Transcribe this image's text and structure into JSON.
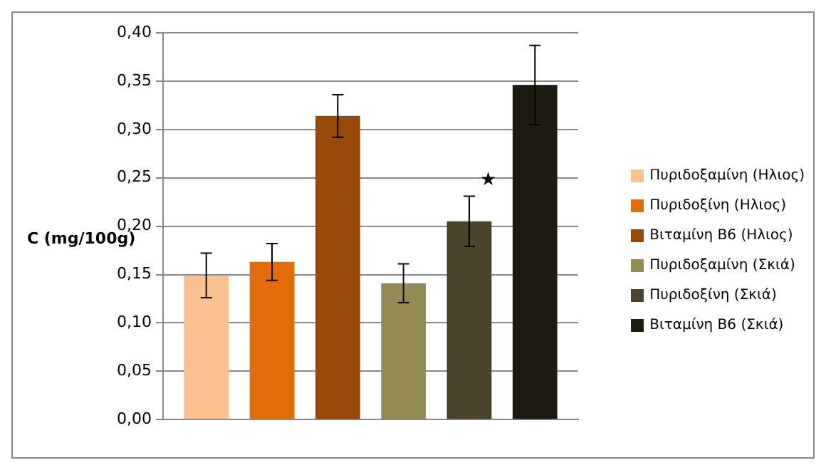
{
  "chart_data": {
    "type": "bar",
    "ylabel": "C (mg/100g)",
    "categories": [
      null
    ],
    "series": [
      {
        "name": "Πυριδοξαμίνη (Ηλιος)",
        "color": "#fac090",
        "values": [
          0.149
        ],
        "errors": [
          0.023
        ]
      },
      {
        "name": "Πυριδοξίνη (Ηλιος)",
        "color": "#e36c0a",
        "values": [
          0.163
        ],
        "errors": [
          0.019
        ]
      },
      {
        "name": "Βιταμίνη Β6 (Ηλιος)",
        "color": "#984807",
        "values": [
          0.314
        ],
        "errors": [
          0.022
        ]
      },
      {
        "name": "Πυριδοξαμίνη (Σκιά)",
        "color": "#948a54",
        "values": [
          0.141
        ],
        "errors": [
          0.02
        ]
      },
      {
        "name": "Πυριδοξίνη (Σκιά)",
        "color": "#4a452a",
        "values": [
          0.205
        ],
        "errors": [
          0.026
        ]
      },
      {
        "name": "Βιταμίνη Β6 (Σκιά)",
        "color": "#1d1b10",
        "values": [
          0.346
        ],
        "errors": [
          0.041
        ]
      }
    ],
    "annotations": [
      "★"
    ],
    "ylim": [
      0,
      0.4
    ],
    "yticks": [
      {
        "value": 0,
        "label": "0,00"
      },
      {
        "value": 0.05,
        "label": "0,05"
      },
      {
        "value": 0.1,
        "label": "0,10"
      },
      {
        "value": 0.15,
        "label": "0,15"
      },
      {
        "value": 0.2,
        "label": "0,20"
      },
      {
        "value": 0.25,
        "label": "0,25"
      },
      {
        "value": 0.3,
        "label": "0,30"
      },
      {
        "value": 0.35,
        "label": "0,35"
      },
      {
        "value": 0.4,
        "label": "0,40"
      }
    ],
    "grid": "y",
    "legend": "right"
  }
}
